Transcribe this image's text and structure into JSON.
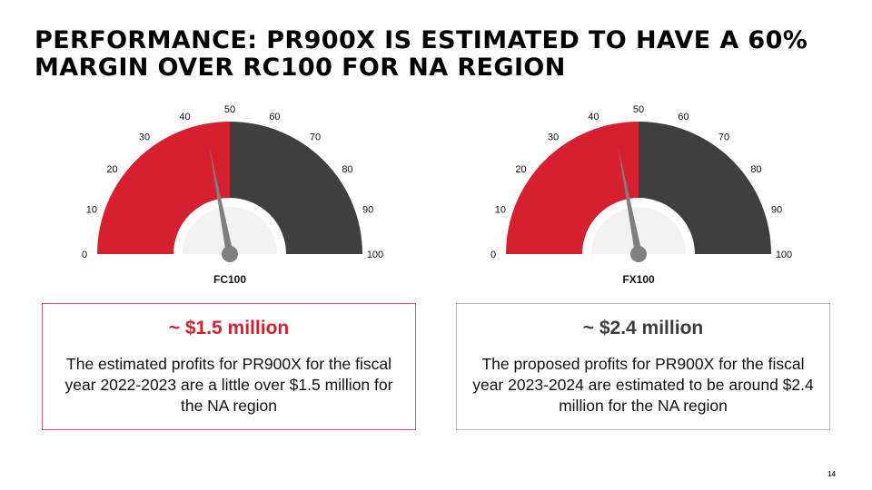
{
  "slide": {
    "title": "PERFORMANCE: PR900X IS ESTIMATED TO HAVE A 60% MARGIN OVER RC100 FOR NA REGION",
    "page_number": "14"
  },
  "colors": {
    "red": "#d7202f",
    "dark": "#3f3f3f",
    "hub": "#f2f2f2",
    "needle": "#7f7f7f"
  },
  "chart_data": [
    {
      "type": "gauge",
      "label": "FC100",
      "min": 0,
      "max": 100,
      "ticks": [
        0,
        10,
        20,
        30,
        40,
        50,
        60,
        70,
        80,
        90,
        100
      ],
      "filled_value": 50,
      "needle_value": 44
    },
    {
      "type": "gauge",
      "label": "FX100",
      "min": 0,
      "max": 100,
      "ticks": [
        0,
        10,
        20,
        30,
        40,
        50,
        60,
        70,
        80,
        90,
        100
      ],
      "filled_value": 50,
      "needle_value": 44
    }
  ],
  "cards": [
    {
      "heading": "~ $1.5 million",
      "body": "The estimated profits for PR900X for the fiscal year 2022-2023  are a little over $1.5 million for the NA region"
    },
    {
      "heading": "~ $2.4 million",
      "body": "The proposed profits for PR900X for the fiscal year 2023-2024  are estimated to be around $2.4 million for the NA region"
    }
  ]
}
